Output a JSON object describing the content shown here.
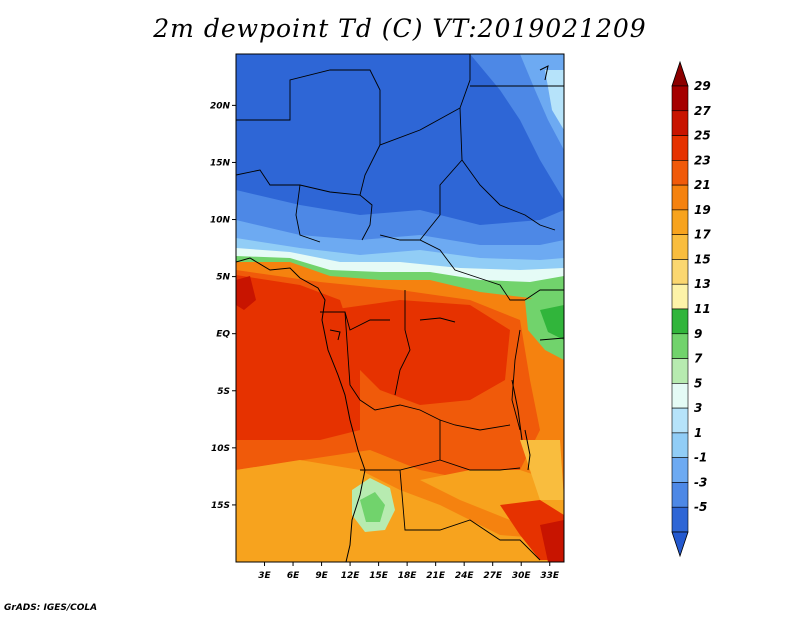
{
  "title": "2m dewpoint Td (C) VT:2019021209",
  "credit": "GrADS: IGES/COLA",
  "map": {
    "lon_range": [
      0,
      34.5
    ],
    "lat_range": [
      -20,
      24.5
    ],
    "lat_ticks": [
      {
        "value": 20,
        "label": "20N"
      },
      {
        "value": 15,
        "label": "15N"
      },
      {
        "value": 10,
        "label": "10N"
      },
      {
        "value": 5,
        "label": "5N"
      },
      {
        "value": 0,
        "label": "EQ"
      },
      {
        "value": -5,
        "label": "5S"
      },
      {
        "value": -10,
        "label": "10S"
      },
      {
        "value": -15,
        "label": "15S"
      }
    ],
    "lon_ticks": [
      {
        "value": 3,
        "label": "3E"
      },
      {
        "value": 6,
        "label": "6E"
      },
      {
        "value": 9,
        "label": "9E"
      },
      {
        "value": 12,
        "label": "12E"
      },
      {
        "value": 15,
        "label": "15E"
      },
      {
        "value": 18,
        "label": "18E"
      },
      {
        "value": 21,
        "label": "21E"
      },
      {
        "value": 24,
        "label": "24E"
      },
      {
        "value": 27,
        "label": "27E"
      },
      {
        "value": 30,
        "label": "30E"
      },
      {
        "value": 33,
        "label": "33E"
      }
    ]
  },
  "colorbar": {
    "levels": [
      {
        "label": "29",
        "color": "#a50000"
      },
      {
        "label": "27",
        "color": "#c81400"
      },
      {
        "label": "25",
        "color": "#e63200"
      },
      {
        "label": "23",
        "color": "#f05a0a"
      },
      {
        "label": "21",
        "color": "#f5820f"
      },
      {
        "label": "19",
        "color": "#f7a31e"
      },
      {
        "label": "17",
        "color": "#f9bd3e"
      },
      {
        "label": "15",
        "color": "#fbd770"
      },
      {
        "label": "13",
        "color": "#fdf3a8"
      },
      {
        "label": "11",
        "color": "#31b53b"
      },
      {
        "label": "9",
        "color": "#71d36c"
      },
      {
        "label": "7",
        "color": "#b7ebb0"
      },
      {
        "label": "5",
        "color": "#e5fbf6"
      },
      {
        "label": "3",
        "color": "#b6e3fa"
      },
      {
        "label": "1",
        "color": "#91cdf6"
      },
      {
        "label": "-1",
        "color": "#6daaf2"
      },
      {
        "label": "-3",
        "color": "#4d88e6"
      },
      {
        "label": "-5",
        "color": "#2e66d6"
      }
    ],
    "top_color": "#8c0000",
    "bottom_color": "#2459cf"
  }
}
